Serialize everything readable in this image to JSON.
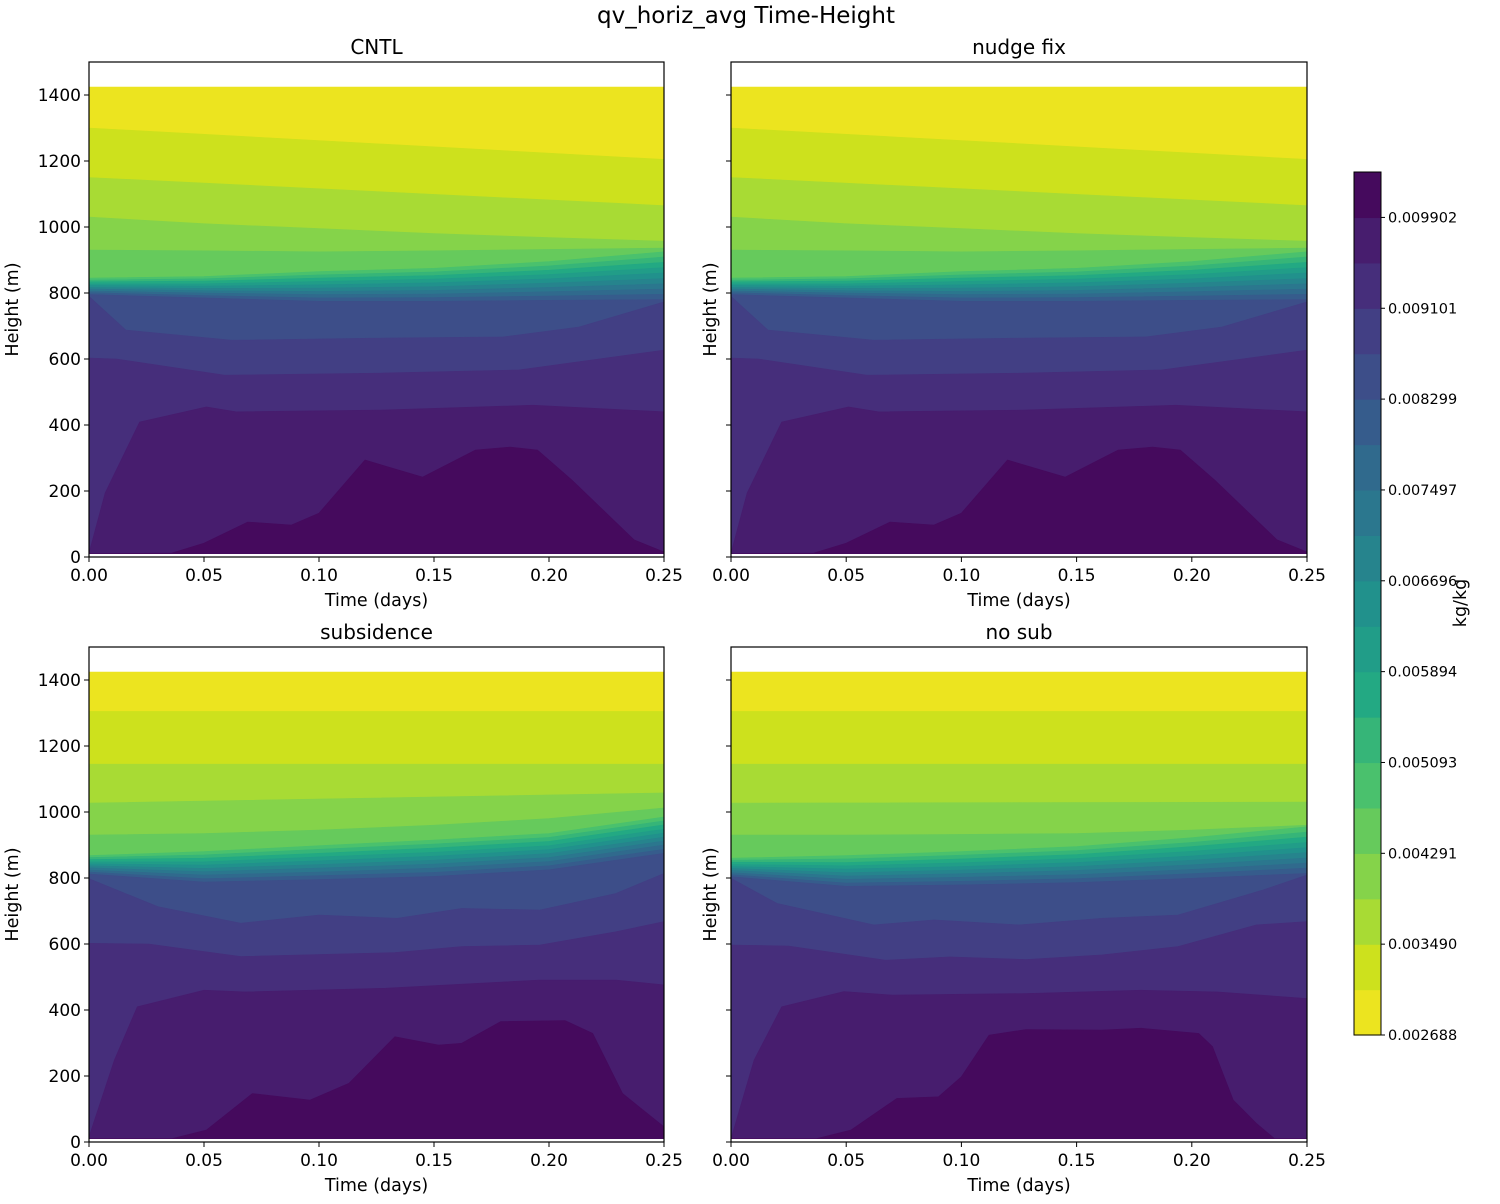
{
  "chart_data": {
    "type": "heatmap",
    "subtype": "filled-contour",
    "title": "qv_horiz_avg Time-Height",
    "colorbar": {
      "label": "kg/kg",
      "levels_start": 0.002688,
      "level_step": 0.00040078,
      "n_bands": 19,
      "tick_labels": [
        "0.002688",
        "0.003490",
        "0.004291",
        "0.005093",
        "0.005894",
        "0.006696",
        "0.007497",
        "0.008299",
        "0.009101",
        "0.009902"
      ],
      "band_colors": [
        "#ece41f",
        "#cde11d",
        "#a8db34",
        "#85d34a",
        "#66ca5c",
        "#4ac16d",
        "#36b578",
        "#23a983",
        "#219d88",
        "#21918c",
        "#26848d",
        "#2b778e",
        "#306a8d",
        "#365c8c",
        "#3d4e89",
        "#423f84",
        "#462e7b",
        "#471d6e",
        "#450a5d"
      ]
    },
    "x_ticks": [
      0,
      0.05,
      0.1,
      0.15,
      0.2,
      0.25
    ],
    "x_tick_labels": [
      "0.00",
      "0.05",
      "0.10",
      "0.15",
      "0.20",
      "0.25"
    ],
    "y_ticks": [
      0,
      200,
      400,
      600,
      800,
      1000,
      1200,
      1400
    ],
    "y_tick_labels": [
      "0",
      "200",
      "400",
      "600",
      "800",
      "1000",
      "1200",
      "1400"
    ],
    "xlim": [
      0,
      0.25
    ],
    "ylim": [
      0,
      1500
    ],
    "data_height_range": [
      10,
      1425
    ],
    "time_grid": [
      0,
      0.05,
      0.1,
      0.15,
      0.2,
      0.25
    ],
    "panels": [
      {
        "title": "CNTL",
        "xlabel": "Time (days)",
        "ylabel": "Height (m)",
        "boundaries_note": "boundary j separates band j (above) from band j+1 (below); heights in m",
        "boundaries": [
          {
            "t": [
              0,
              0.25
            ],
            "h": [
              1300,
              1205
            ]
          },
          {
            "t": [
              0,
              0.25
            ],
            "h": [
              1150,
              1065
            ]
          },
          {
            "h": [
              1030,
              1010,
              995,
              980,
              968,
              957
            ]
          },
          {
            "h": [
              930,
              928,
              925,
              928,
              932,
              936
            ]
          },
          {
            "h": [
              845,
              850,
              865,
              875,
              895,
              925
            ]
          },
          {
            "h": [
              839,
              843,
              855,
              864,
              882,
              909
            ]
          },
          {
            "h": [
              834,
              836,
              845,
              853,
              869,
              893
            ]
          },
          {
            "h": [
              828,
              828,
              835,
              842,
              856,
              877
            ]
          },
          {
            "h": [
              823,
              821,
              825,
              831,
              843,
              861
            ]
          },
          {
            "h": [
              817,
              814,
              815,
              819,
              830,
              844
            ]
          },
          {
            "h": [
              812,
              807,
              805,
              808,
              817,
              828
            ]
          },
          {
            "h": [
              806,
              800,
              795,
              797,
              804,
              812
            ]
          },
          {
            "h": [
              801,
              792,
              785,
              786,
              791,
              796
            ]
          },
          {
            "h": [
              795,
              785,
              775,
              775,
              778,
              780
            ]
          },
          {
            "t": [
              0,
              0.016,
              0.062,
              0.123,
              0.18,
              0.213,
              0.25
            ],
            "h": [
              790,
              688,
              657,
              663,
              667,
              697,
              773
            ]
          },
          {
            "t": [
              0,
              0.012,
              0.059,
              0.125,
              0.187,
              0.25
            ],
            "h": [
              603,
              600,
              551,
              557,
              567,
              627
            ]
          },
          {
            "t": [
              0,
              0.007,
              0.022,
              0.051,
              0.064,
              0.127,
              0.193,
              0.25
            ],
            "h": [
              12,
              194,
              409,
              455,
              440,
              445,
              460,
              440
            ]
          },
          {
            "t": [
              0,
              0.036,
              0.05,
              0.069,
              0.088,
              0.1,
              0.12,
              0.145,
              0.168,
              0.183,
              0.195,
              0.21,
              0.237,
              0.25
            ],
            "h": [
              10,
              12,
              42,
              106,
              97,
              133,
              294,
              242,
              324,
              333,
              324,
              233,
              52,
              15
            ]
          }
        ]
      },
      {
        "title": "nudge fix",
        "xlabel": "Time (days)",
        "ylabel": "Height (m)",
        "boundaries": [
          {
            "t": [
              0,
              0.25
            ],
            "h": [
              1300,
              1205
            ]
          },
          {
            "t": [
              0,
              0.25
            ],
            "h": [
              1150,
              1065
            ]
          },
          {
            "h": [
              1030,
              1010,
              995,
              980,
              968,
              957
            ]
          },
          {
            "h": [
              930,
              928,
              925,
              928,
              932,
              936
            ]
          },
          {
            "h": [
              845,
              850,
              865,
              875,
              895,
              925
            ]
          },
          {
            "h": [
              839,
              843,
              855,
              864,
              882,
              909
            ]
          },
          {
            "h": [
              834,
              836,
              845,
              853,
              869,
              893
            ]
          },
          {
            "h": [
              828,
              828,
              835,
              842,
              856,
              877
            ]
          },
          {
            "h": [
              823,
              821,
              825,
              831,
              843,
              861
            ]
          },
          {
            "h": [
              817,
              814,
              815,
              819,
              830,
              844
            ]
          },
          {
            "h": [
              812,
              807,
              805,
              808,
              817,
              828
            ]
          },
          {
            "h": [
              806,
              800,
              795,
              797,
              804,
              812
            ]
          },
          {
            "h": [
              801,
              792,
              785,
              786,
              791,
              796
            ]
          },
          {
            "h": [
              795,
              785,
              775,
              775,
              778,
              780
            ]
          },
          {
            "t": [
              0,
              0.016,
              0.062,
              0.123,
              0.18,
              0.213,
              0.25
            ],
            "h": [
              790,
              688,
              657,
              663,
              667,
              697,
              773
            ]
          },
          {
            "t": [
              0,
              0.012,
              0.059,
              0.125,
              0.187,
              0.25
            ],
            "h": [
              603,
              600,
              551,
              557,
              567,
              627
            ]
          },
          {
            "t": [
              0,
              0.007,
              0.022,
              0.051,
              0.064,
              0.127,
              0.193,
              0.25
            ],
            "h": [
              12,
              194,
              409,
              455,
              440,
              445,
              460,
              440
            ]
          },
          {
            "t": [
              0,
              0.036,
              0.05,
              0.069,
              0.088,
              0.1,
              0.12,
              0.145,
              0.168,
              0.183,
              0.195,
              0.21,
              0.237,
              0.25
            ],
            "h": [
              10,
              12,
              42,
              106,
              97,
              133,
              294,
              242,
              324,
              333,
              324,
              233,
              52,
              15
            ]
          }
        ]
      },
      {
        "title": "subsidence",
        "xlabel": "Time (days)",
        "ylabel": "Height (m)",
        "boundaries": [
          {
            "t": [
              0,
              0.25
            ],
            "h": [
              1305,
              1305
            ]
          },
          {
            "t": [
              0,
              0.25
            ],
            "h": [
              1145,
              1145
            ]
          },
          {
            "t": [
              0,
              0.25
            ],
            "h": [
              1027,
              1058
            ]
          },
          {
            "h": [
              930,
              935,
              945,
              960,
              980,
              1012
            ]
          },
          {
            "h": [
              868,
              880,
              898,
              915,
              935,
              985
            ]
          },
          {
            "h": [
              862,
              870,
              887,
              903,
              923,
              973
            ]
          },
          {
            "h": [
              856,
              860,
              875,
              891,
              911,
              961
            ]
          },
          {
            "h": [
              849,
              849,
              864,
              878,
              898,
              948
            ]
          },
          {
            "h": [
              843,
              839,
              852,
              866,
              886,
              936
            ]
          },
          {
            "h": [
              837,
              829,
              841,
              854,
              874,
              924
            ]
          },
          {
            "h": [
              831,
              819,
              830,
              842,
              862,
              912
            ]
          },
          {
            "h": [
              824,
              809,
              818,
              830,
              850,
              900
            ]
          },
          {
            "h": [
              818,
              798,
              807,
              817,
              837,
              887
            ]
          },
          {
            "h": [
              812,
              788,
              795,
              805,
              825,
              875
            ]
          },
          {
            "t": [
              0,
              0.03,
              0.066,
              0.1,
              0.134,
              0.162,
              0.196,
              0.229,
              0.25
            ],
            "h": [
              798,
              713,
              663,
              688,
              678,
              708,
              703,
              753,
              814
            ]
          },
          {
            "t": [
              0,
              0.026,
              0.066,
              0.133,
              0.162,
              0.196,
              0.229,
              0.25
            ],
            "h": [
              602,
              600,
              562,
              574,
              592,
              597,
              637,
              668
            ]
          },
          {
            "t": [
              0,
              0.011,
              0.021,
              0.05,
              0.068,
              0.129,
              0.196,
              0.229,
              0.25
            ],
            "h": [
              16,
              248,
              410,
              460,
              455,
              466,
              491,
              491,
              476
            ]
          },
          {
            "t": [
              0,
              0.036,
              0.051,
              0.071,
              0.096,
              0.113,
              0.133,
              0.152,
              0.162,
              0.179,
              0.207,
              0.219,
              0.232,
              0.25
            ],
            "h": [
              10,
              10,
              36,
              147,
              127,
              178,
              319,
              294,
              299,
              365,
              368,
              329,
              147,
              46
            ]
          }
        ]
      },
      {
        "title": "no sub",
        "xlabel": "Time (days)",
        "ylabel": "Height (m)",
        "boundaries": [
          {
            "t": [
              0,
              0.25
            ],
            "h": [
              1305,
              1305
            ]
          },
          {
            "t": [
              0,
              0.25
            ],
            "h": [
              1145,
              1145
            ]
          },
          {
            "t": [
              0,
              0.25
            ],
            "h": [
              1027,
              1030
            ]
          },
          {
            "h": [
              930,
              930,
              932,
              935,
              945,
              960
            ]
          },
          {
            "h": [
              860,
              868,
              880,
              895,
              922,
              955
            ]
          },
          {
            "h": [
              854,
              858,
              869,
              883,
              908,
              939
            ]
          },
          {
            "h": [
              848,
              847,
              858,
              871,
              895,
              924
            ]
          },
          {
            "h": [
              841,
              837,
              846,
              859,
              881,
              908
            ]
          },
          {
            "h": [
              835,
              827,
              835,
              847,
              867,
              892
            ]
          },
          {
            "h": [
              829,
              816,
              824,
              835,
              854,
              877
            ]
          },
          {
            "h": [
              823,
              806,
              813,
              823,
              840,
              861
            ]
          },
          {
            "h": [
              816,
              796,
              802,
              810,
              826,
              845
            ]
          },
          {
            "h": [
              810,
              785,
              790,
              798,
              813,
              830
            ]
          },
          {
            "h": [
              804,
              775,
              779,
              786,
              799,
              814
            ]
          },
          {
            "t": [
              0,
              0.02,
              0.062,
              0.088,
              0.125,
              0.161,
              0.194,
              0.231,
              0.25
            ],
            "h": [
              799,
              723,
              658,
              673,
              658,
              678,
              688,
              764,
              809
            ]
          },
          {
            "t": [
              0,
              0.025,
              0.067,
              0.095,
              0.128,
              0.161,
              0.194,
              0.228,
              0.25
            ],
            "h": [
              597,
              594,
              551,
              561,
              553,
              567,
              592,
              658,
              668
            ]
          },
          {
            "t": [
              0,
              0.01,
              0.022,
              0.049,
              0.07,
              0.128,
              0.178,
              0.211,
              0.25
            ],
            "h": [
              6,
              248,
              410,
              456,
              445,
              450,
              460,
              455,
              435
            ]
          },
          {
            "t": [
              0,
              0.037,
              0.052,
              0.072,
              0.09,
              0.1,
              0.112,
              0.128,
              0.161,
              0.178,
              0.203,
              0.209,
              0.218,
              0.228,
              0.236,
              0.25
            ],
            "h": [
              10,
              10,
              36,
              132,
              137,
              198,
              324,
              341,
              339,
              345,
              329,
              289,
              127,
              57,
              10,
              10
            ]
          }
        ]
      }
    ]
  }
}
